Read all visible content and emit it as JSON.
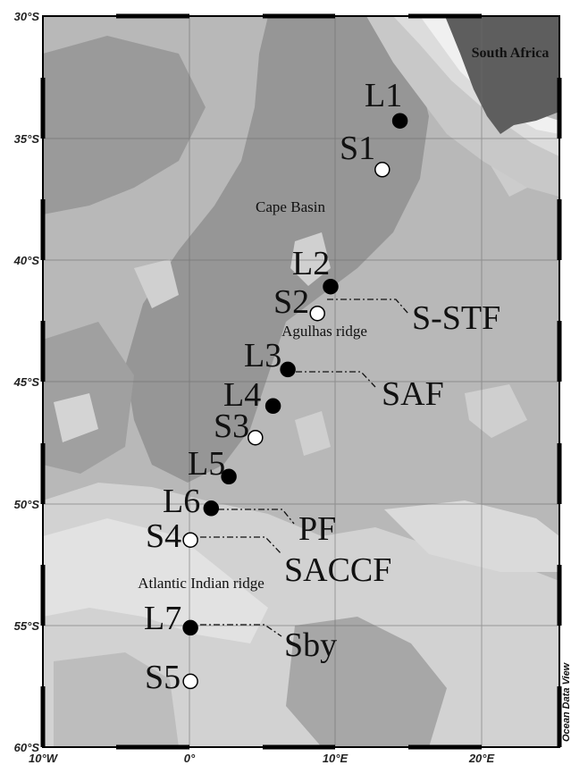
{
  "axes": {
    "lat_ticks": [
      "30°S",
      "35°S",
      "40°S",
      "45°S",
      "50°S",
      "55°S",
      "60°S"
    ],
    "lon_ticks": [
      "10°W",
      "0°",
      "10°E",
      "20°E"
    ]
  },
  "regions": {
    "country": "South Africa",
    "basin": "Cape Basin",
    "ridge1": "Agulhas ridge",
    "ridge2": "Atlantic Indian ridge"
  },
  "stations": [
    {
      "id": "L1",
      "type": "filled",
      "lon": 14.2,
      "lat": -34.3
    },
    {
      "id": "S1",
      "type": "open",
      "lon": 13.0,
      "lat": -36.3
    },
    {
      "id": "L2",
      "type": "filled",
      "lon": 9.5,
      "lat": -41.1
    },
    {
      "id": "S2",
      "type": "open",
      "lon": 8.6,
      "lat": -42.2
    },
    {
      "id": "L3",
      "type": "filled",
      "lon": 6.6,
      "lat": -44.5
    },
    {
      "id": "L4",
      "type": "filled",
      "lon": 5.6,
      "lat": -46.0
    },
    {
      "id": "S3",
      "type": "open",
      "lon": 4.4,
      "lat": -47.3
    },
    {
      "id": "L5",
      "type": "filled",
      "lon": 2.6,
      "lat": -48.9
    },
    {
      "id": "L6",
      "type": "filled",
      "lon": 1.4,
      "lat": -50.2
    },
    {
      "id": "S4",
      "type": "open",
      "lon": 0.0,
      "lat": -51.5
    },
    {
      "id": "L7",
      "type": "filled",
      "lon": 0.0,
      "lat": -55.1
    },
    {
      "id": "S5",
      "type": "open",
      "lon": 0.0,
      "lat": -57.3
    }
  ],
  "fronts": [
    {
      "name": "S-STF",
      "from_station": "S2"
    },
    {
      "name": "SAF",
      "from_station": "L3"
    },
    {
      "name": "PF",
      "from_station": "L6"
    },
    {
      "name": "SACCF",
      "from_station": "S4"
    },
    {
      "name": "Sby",
      "from_station": "L7"
    }
  ],
  "credit": "Ocean Data View",
  "colors": {
    "ocean_mid": "#a9a9a9",
    "ocean_dark": "#8f8f8f",
    "ocean_light": "#c6c6c6",
    "ocean_lightest": "#dedede",
    "land": "#5e5e5e",
    "filled_marker": "#000000",
    "open_marker": "#ffffff"
  }
}
